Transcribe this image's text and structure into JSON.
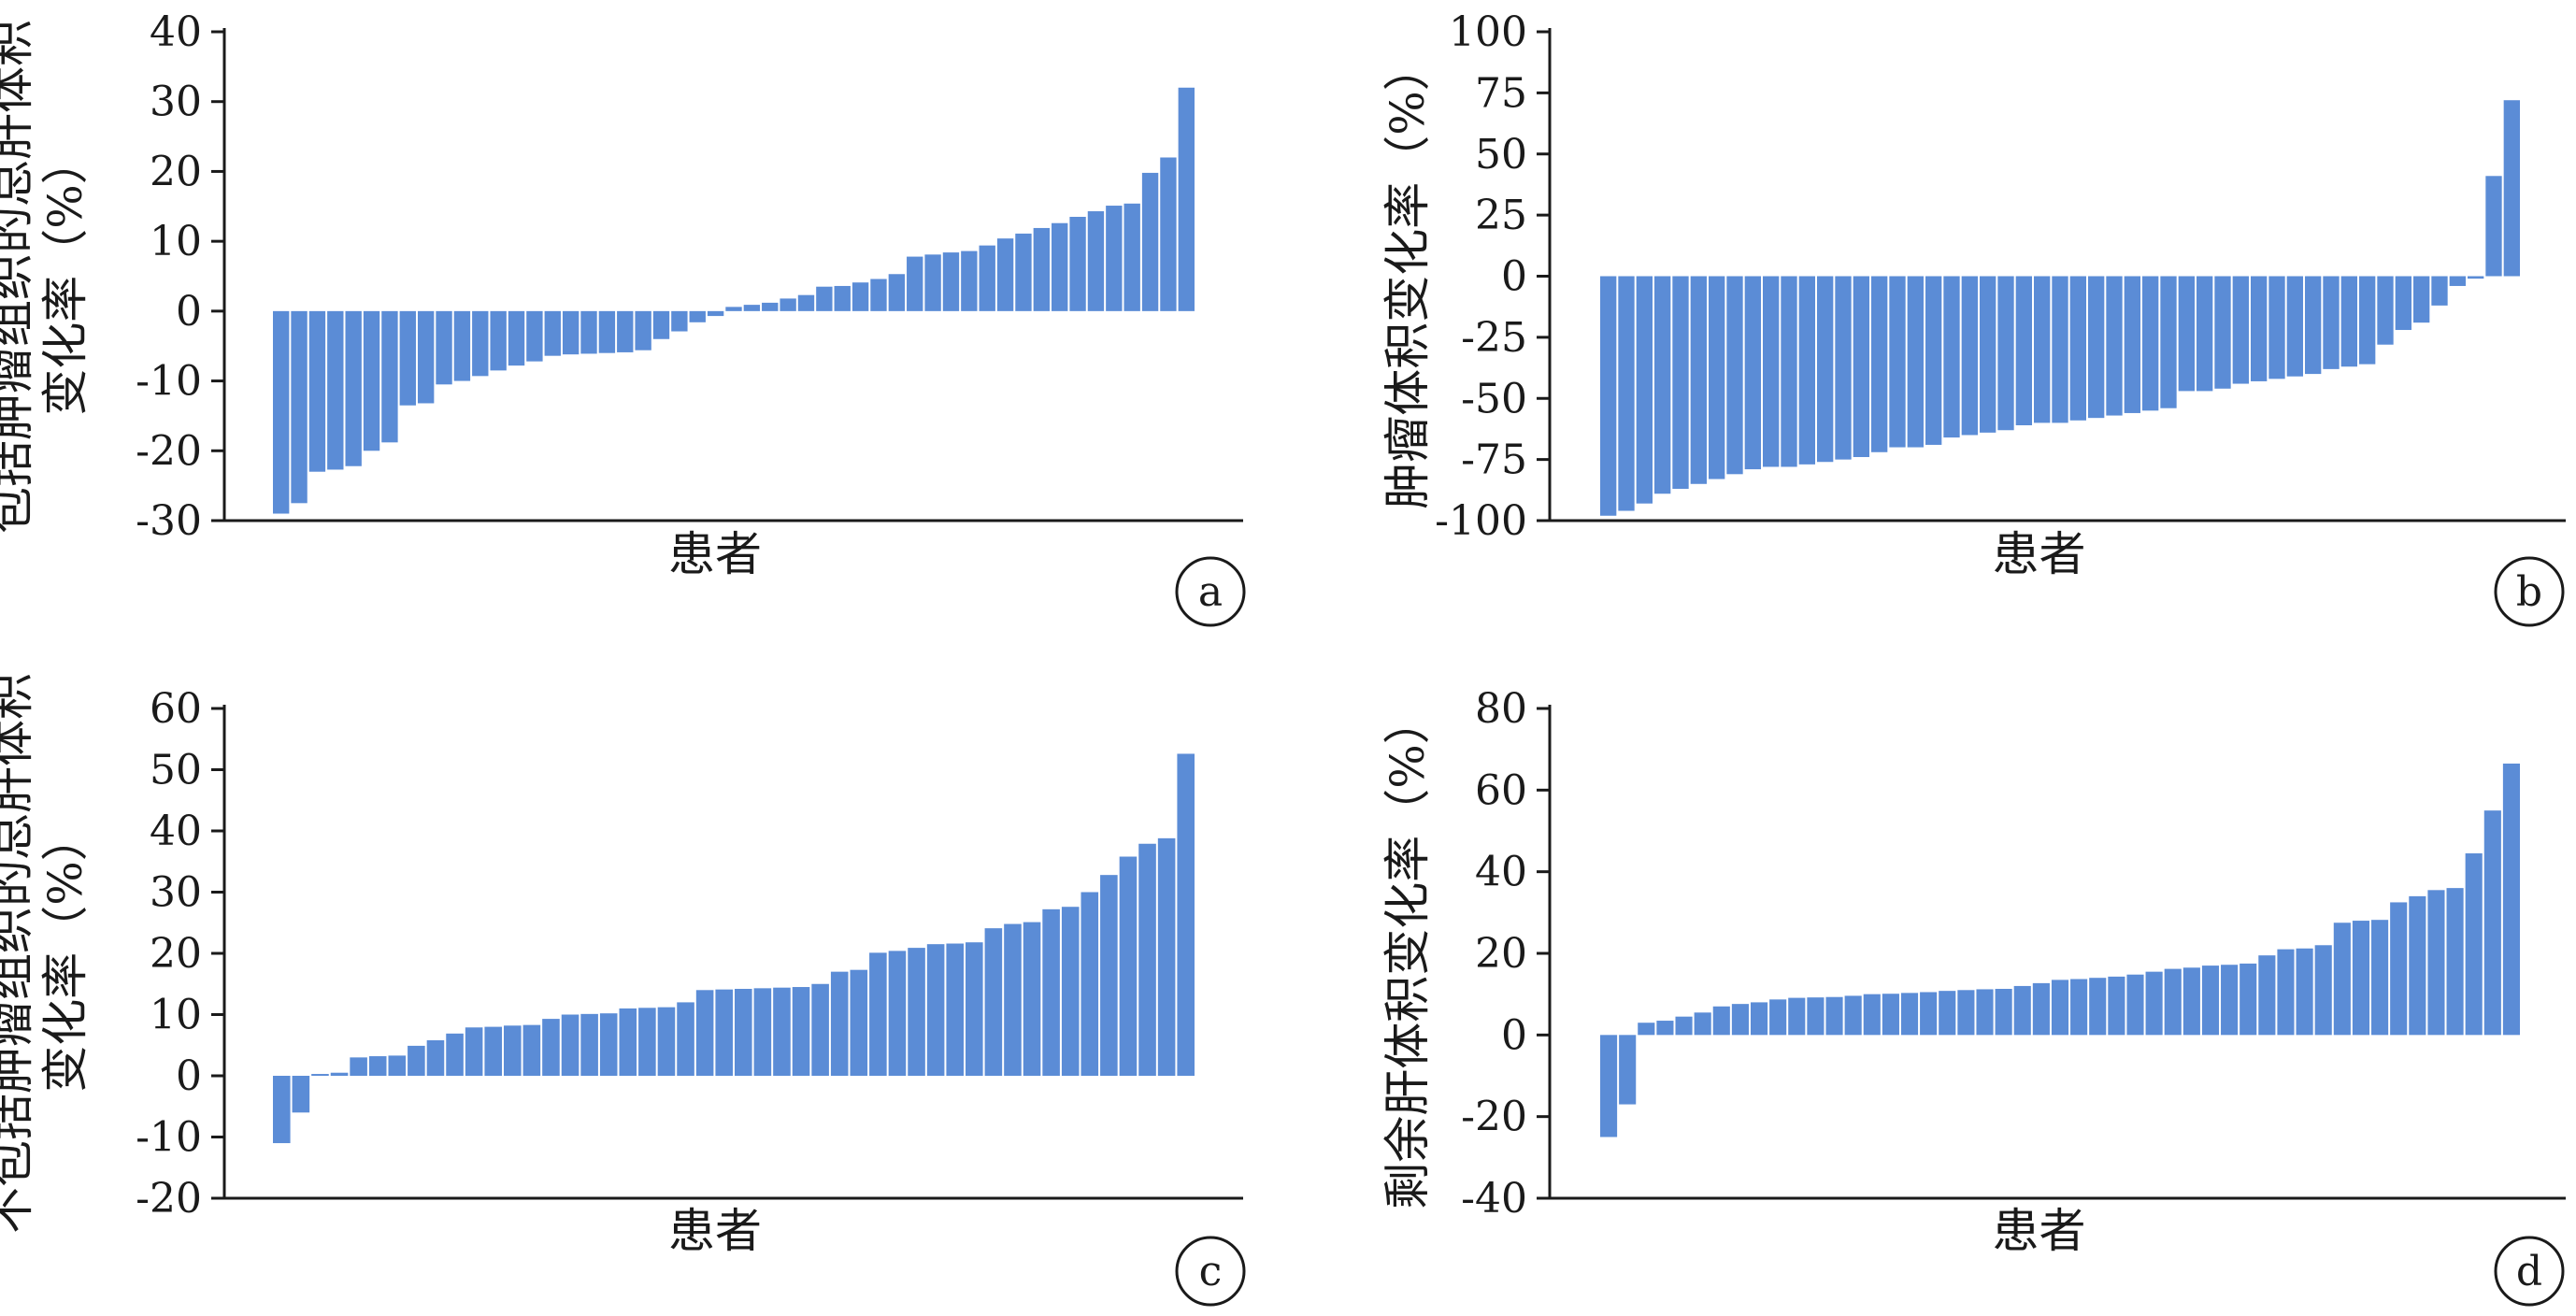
{
  "chart_data": [
    {
      "panel": "a",
      "type": "bar",
      "xlabel": "患者",
      "ylabel_lines": [
        "包括肿瘤组织的总肝体积",
        "变化率（%）"
      ],
      "ylim": [
        -30,
        40
      ],
      "yticks": [
        40,
        30,
        20,
        10,
        0,
        -10,
        -20,
        -30
      ],
      "color": "#5B8CD6",
      "values": [
        -29,
        -27.5,
        -23,
        -22.7,
        -22.2,
        -20,
        -18.8,
        -13.5,
        -13.2,
        -10.5,
        -10,
        -9.3,
        -8.5,
        -7.8,
        -7.2,
        -6.4,
        -6.2,
        -6.1,
        -6,
        -5.9,
        -5.6,
        -4,
        -2.9,
        -1.6,
        -0.7,
        0.6,
        0.9,
        1.2,
        1.8,
        2.3,
        3.5,
        3.6,
        4.1,
        4.6,
        5.3,
        7.8,
        8.1,
        8.4,
        8.6,
        9.4,
        10.4,
        11.1,
        11.9,
        12.6,
        13.5,
        14.3,
        15.1,
        15.4,
        19.8,
        22,
        32
      ]
    },
    {
      "panel": "b",
      "type": "bar",
      "xlabel": "患者",
      "ylabel_lines": [
        "肿瘤体积变化率（%）"
      ],
      "ylim": [
        -100,
        100
      ],
      "yticks": [
        100,
        75,
        50,
        25,
        0,
        -25,
        -50,
        -75,
        -100
      ],
      "color": "#5B8CD6",
      "values": [
        -98,
        -96,
        -93,
        -89,
        -87,
        -85,
        -83,
        -81,
        -79,
        -78,
        -78,
        -77,
        -76,
        -75,
        -74,
        -72,
        -70,
        -70,
        -69,
        -66,
        -65,
        -64,
        -63,
        -61,
        -60,
        -60,
        -59,
        -58,
        -57,
        -56,
        -55,
        -54,
        -47,
        -47,
        -46,
        -44,
        -43,
        -42,
        -41,
        -40,
        -38,
        -37,
        -36,
        -28,
        -22,
        -19,
        -12,
        -4,
        -1,
        41,
        72
      ]
    },
    {
      "panel": "c",
      "type": "bar",
      "xlabel": "患者",
      "ylabel_lines": [
        "不包括肿瘤组织的总肝体积",
        "变化率（%）"
      ],
      "ylim": [
        -20,
        60
      ],
      "yticks": [
        60,
        50,
        40,
        30,
        20,
        10,
        0,
        -10,
        -20
      ],
      "color": "#5B8CD6",
      "values": [
        -11,
        -6,
        0.3,
        0.5,
        3,
        3.2,
        3.3,
        4.9,
        5.8,
        6.9,
        7.9,
        8,
        8.2,
        8.3,
        9.3,
        10,
        10.1,
        10.2,
        11,
        11.1,
        11.2,
        12,
        14,
        14.1,
        14.2,
        14.3,
        14.4,
        14.5,
        15,
        17,
        17.3,
        20.1,
        20.4,
        20.9,
        21.5,
        21.6,
        21.8,
        24.1,
        24.8,
        25.1,
        27.2,
        27.6,
        30,
        32.8,
        35.8,
        37.9,
        38.8,
        52.6
      ]
    },
    {
      "panel": "d",
      "type": "bar",
      "xlabel": "患者",
      "ylabel_lines": [
        "剩余肝体积变化率（%）"
      ],
      "ylim": [
        -40,
        80
      ],
      "yticks": [
        80,
        60,
        40,
        20,
        0,
        -20,
        -40
      ],
      "color": "#5B8CD6",
      "values": [
        -25,
        -17,
        3,
        3.5,
        4.5,
        5.5,
        7,
        7.6,
        8,
        8.7,
        9.1,
        9.2,
        9.3,
        9.6,
        10,
        10.1,
        10.3,
        10.5,
        10.8,
        11,
        11.2,
        11.3,
        12,
        12.7,
        13.5,
        13.7,
        14,
        14.3,
        14.8,
        15.5,
        16.2,
        16.5,
        17,
        17.2,
        17.5,
        19.5,
        21,
        21.2,
        22,
        27.5,
        28,
        28.2,
        32.5,
        34,
        35.5,
        36,
        44.5,
        55,
        66.5
      ]
    }
  ]
}
